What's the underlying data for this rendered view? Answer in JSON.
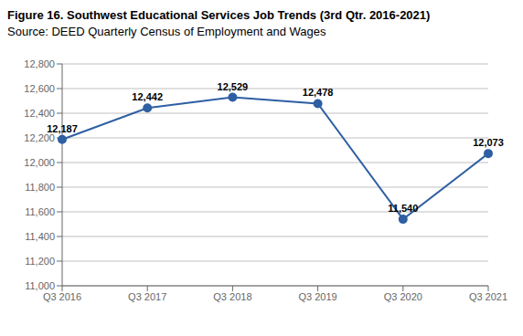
{
  "chart_data": {
    "type": "line",
    "title": "Figure 16. Southwest Educational Services Job Trends (3rd Qtr. 2016-2021)",
    "subtitle": "Source: DEED Quarterly Census of Employment and Wages",
    "categories": [
      "Q3 2016",
      "Q3 2017",
      "Q3 2018",
      "Q3 2019",
      "Q3 2020",
      "Q3 2021"
    ],
    "values": [
      12187,
      12442,
      12529,
      12478,
      11540,
      12073
    ],
    "value_labels": [
      "12,187",
      "12,442",
      "12,529",
      "12,478",
      "11,540",
      "12,073"
    ],
    "data_labels": true,
    "color": "#2E5FA3",
    "marker": "circle",
    "ylim": [
      11000,
      12800
    ],
    "yticks": [
      {
        "value": 11000,
        "label": "11,000"
      },
      {
        "value": 11200,
        "label": "11,200"
      },
      {
        "value": 11400,
        "label": "11,400"
      },
      {
        "value": 11600,
        "label": "11,600"
      },
      {
        "value": 11800,
        "label": "11,800"
      },
      {
        "value": 12000,
        "label": "12,000"
      },
      {
        "value": 12200,
        "label": "12,200"
      },
      {
        "value": 12400,
        "label": "12,400"
      },
      {
        "value": 12600,
        "label": "12,600"
      },
      {
        "value": 12800,
        "label": "12,800"
      }
    ],
    "grid": "y"
  }
}
